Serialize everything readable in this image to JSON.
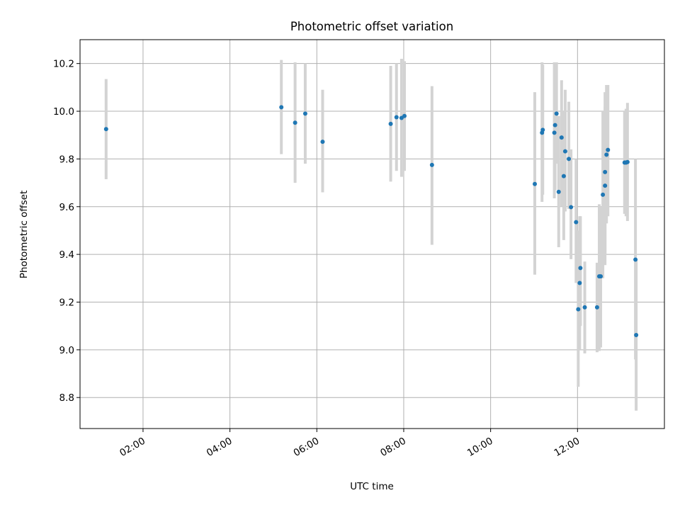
{
  "chart_data": {
    "type": "scatter",
    "title": "Photometric offset variation",
    "xlabel": "UTC time",
    "ylabel": "Photometric offset",
    "x_axis": {
      "type": "time",
      "range": [
        "00:33",
        "14:00"
      ],
      "tick_labels": [
        "02:00",
        "04:00",
        "06:00",
        "08:00",
        "10:00",
        "12:00"
      ],
      "tick_values": [
        "02:00",
        "04:00",
        "06:00",
        "08:00",
        "10:00",
        "12:00"
      ],
      "tick_rotation_deg": 30
    },
    "y_axis": {
      "range": [
        8.67,
        10.3
      ],
      "tick_labels": [
        "8.8",
        "9.0",
        "9.2",
        "9.4",
        "9.6",
        "9.8",
        "10.0",
        "10.2"
      ],
      "tick_values": [
        8.8,
        9.0,
        9.2,
        9.4,
        9.6,
        9.8,
        10.0,
        10.2
      ]
    },
    "grid": true,
    "marker_color": "#1f77b4",
    "errorbar_color": "#d3d3d3",
    "points": [
      {
        "x": "01:09",
        "y": 9.925,
        "ylo": 9.715,
        "yhi": 10.135
      },
      {
        "x": "05:11",
        "y": 10.017,
        "ylo": 9.82,
        "yhi": 10.215
      },
      {
        "x": "05:30",
        "y": 9.952,
        "ylo": 9.7,
        "yhi": 10.205
      },
      {
        "x": "05:44",
        "y": 9.99,
        "ylo": 9.78,
        "yhi": 10.2
      },
      {
        "x": "06:08",
        "y": 9.872,
        "ylo": 9.66,
        "yhi": 10.09
      },
      {
        "x": "07:42",
        "y": 9.947,
        "ylo": 9.705,
        "yhi": 10.19
      },
      {
        "x": "07:50",
        "y": 9.975,
        "ylo": 9.75,
        "yhi": 10.2
      },
      {
        "x": "07:57",
        "y": 9.972,
        "ylo": 9.725,
        "yhi": 10.22
      },
      {
        "x": "08:01",
        "y": 9.98,
        "ylo": 9.75,
        "yhi": 10.21
      },
      {
        "x": "08:39",
        "y": 9.775,
        "ylo": 9.44,
        "yhi": 10.105
      },
      {
        "x": "11:01",
        "y": 9.695,
        "ylo": 9.315,
        "yhi": 10.08
      },
      {
        "x": "11:11",
        "y": 9.91,
        "ylo": 9.62,
        "yhi": 10.205
      },
      {
        "x": "11:12",
        "y": 9.922,
        "ylo": 9.65,
        "yhi": 10.195
      },
      {
        "x": "11:28",
        "y": 9.91,
        "ylo": 9.635,
        "yhi": 10.205
      },
      {
        "x": "11:29",
        "y": 9.942,
        "ylo": 9.67,
        "yhi": 10.205
      },
      {
        "x": "11:31",
        "y": 9.99,
        "ylo": 9.78,
        "yhi": 10.205
      },
      {
        "x": "11:34",
        "y": 9.662,
        "ylo": 9.43,
        "yhi": 9.98
      },
      {
        "x": "11:38",
        "y": 9.89,
        "ylo": 9.6,
        "yhi": 10.13
      },
      {
        "x": "11:41",
        "y": 9.728,
        "ylo": 9.46,
        "yhi": 10.0
      },
      {
        "x": "11:43",
        "y": 9.832,
        "ylo": 9.58,
        "yhi": 10.09
      },
      {
        "x": "11:48",
        "y": 9.8,
        "ylo": 9.59,
        "yhi": 10.04
      },
      {
        "x": "11:51",
        "y": 9.598,
        "ylo": 9.38,
        "yhi": 9.84
      },
      {
        "x": "11:58",
        "y": 9.535,
        "ylo": 9.28,
        "yhi": 9.8
      },
      {
        "x": "12:01",
        "y": 9.17,
        "ylo": 8.845,
        "yhi": 9.5
      },
      {
        "x": "12:03",
        "y": 9.28,
        "ylo": 9.0,
        "yhi": 9.56
      },
      {
        "x": "12:04",
        "y": 9.343,
        "ylo": 9.1,
        "yhi": 9.56
      },
      {
        "x": "12:10",
        "y": 9.178,
        "ylo": 8.985,
        "yhi": 9.37
      },
      {
        "x": "12:27",
        "y": 9.178,
        "ylo": 8.99,
        "yhi": 9.365
      },
      {
        "x": "12:30",
        "y": 9.308,
        "ylo": 8.995,
        "yhi": 9.61
      },
      {
        "x": "12:32",
        "y": 9.308,
        "ylo": 9.01,
        "yhi": 9.6
      },
      {
        "x": "12:35",
        "y": 9.65,
        "ylo": 9.3,
        "yhi": 10.0
      },
      {
        "x": "12:38",
        "y": 9.745,
        "ylo": 9.4,
        "yhi": 10.08
      },
      {
        "x": "12:38",
        "y": 9.688,
        "ylo": 9.355,
        "yhi": 10.02
      },
      {
        "x": "12:40",
        "y": 9.818,
        "ylo": 9.53,
        "yhi": 10.11
      },
      {
        "x": "12:42",
        "y": 9.838,
        "ylo": 9.56,
        "yhi": 10.11
      },
      {
        "x": "13:05",
        "y": 9.785,
        "ylo": 9.57,
        "yhi": 10.0
      },
      {
        "x": "13:07",
        "y": 9.785,
        "ylo": 9.56,
        "yhi": 10.01
      },
      {
        "x": "13:09",
        "y": 9.787,
        "ylo": 9.54,
        "yhi": 10.035
      },
      {
        "x": "13:20",
        "y": 9.378,
        "ylo": 8.96,
        "yhi": 9.8
      },
      {
        "x": "13:21",
        "y": 9.062,
        "ylo": 8.745,
        "yhi": 9.38
      }
    ]
  }
}
